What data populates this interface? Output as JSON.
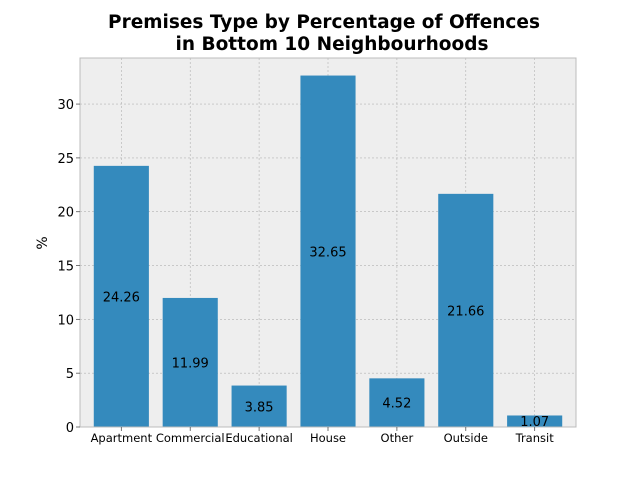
{
  "chart_data": {
    "type": "bar",
    "title_lines": [
      "Premises Type by Percentage of Offences",
      "in Bottom 10 Neighbourhoods"
    ],
    "xlabel": "",
    "ylabel": "%",
    "categories": [
      "Apartment",
      "Commercial",
      "Educational",
      "House",
      "Other",
      "Outside",
      "Transit"
    ],
    "values": [
      24.26,
      11.99,
      3.85,
      32.65,
      4.52,
      21.66,
      1.07
    ],
    "data_labels": [
      "24.26",
      "11.99",
      "3.85",
      "32.65",
      "4.52",
      "21.66",
      "1.07"
    ],
    "ylim": [
      0,
      34.28
    ],
    "yticks": [
      0,
      5,
      10,
      15,
      20,
      25,
      30
    ],
    "grid": true,
    "colors": {
      "bar": "#348abd",
      "axes_bg": "#eeeeee",
      "grid": "#b2b2b2",
      "spine": "#bcbcbc",
      "text": "#000000"
    }
  }
}
